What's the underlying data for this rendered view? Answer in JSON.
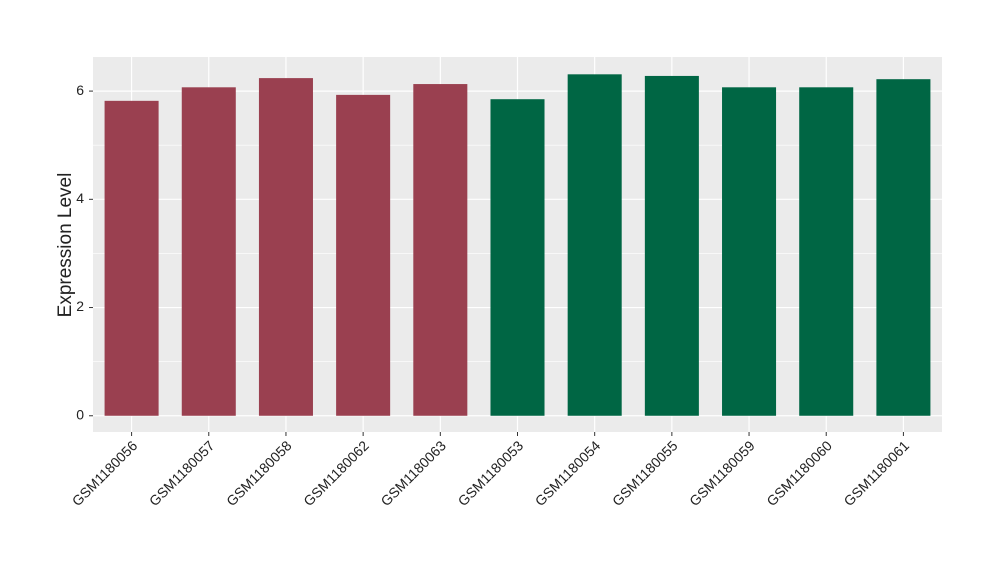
{
  "chart_data": {
    "type": "bar",
    "y_label": "Expression Level",
    "categories": [
      "GSM1180056",
      "GSM1180057",
      "GSM1180058",
      "GSM1180062",
      "GSM1180063",
      "GSM1180053",
      "GSM1180054",
      "GSM1180055",
      "GSM1180059",
      "GSM1180060",
      "GSM1180061"
    ],
    "values": [
      5.82,
      6.07,
      6.24,
      5.93,
      6.13,
      5.85,
      6.31,
      6.28,
      6.07,
      6.07,
      6.22
    ],
    "colors": [
      "#9a4050",
      "#9a4050",
      "#9a4050",
      "#9a4050",
      "#9a4050",
      "#006644",
      "#006644",
      "#006644",
      "#006644",
      "#006644",
      "#006644"
    ],
    "ylim": [
      -0.3,
      6.63
    ],
    "yticks": [
      0,
      2,
      4,
      6
    ],
    "yticks_minor": [
      1,
      3,
      5
    ],
    "grid": true
  }
}
